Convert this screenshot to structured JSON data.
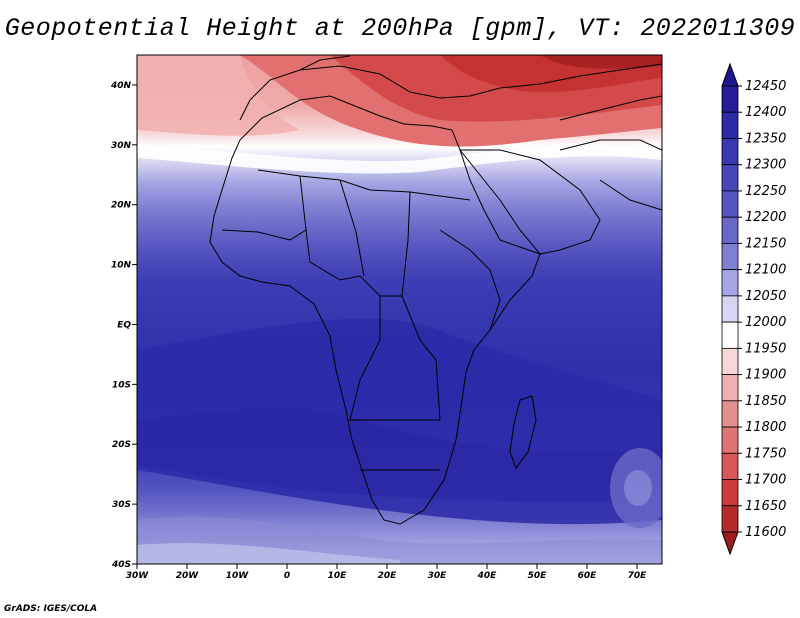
{
  "title": "Geopotential Height at 200hPa [gpm], VT: 2022011309",
  "footer": "GrADS: IGES/COLA",
  "map": {
    "lat_labels": [
      "40N",
      "30N",
      "20N",
      "10N",
      "EQ",
      "10S",
      "20S",
      "30S",
      "40S"
    ],
    "lon_labels": [
      "30W",
      "20W",
      "10W",
      "0",
      "10E",
      "20E",
      "30E",
      "40E",
      "50E",
      "60E",
      "70E"
    ]
  },
  "colorbar": {
    "levels": [
      "12450",
      "12400",
      "12350",
      "12300",
      "12250",
      "12200",
      "12150",
      "12100",
      "12050",
      "12000",
      "11950",
      "11900",
      "11850",
      "11800",
      "11750",
      "11700",
      "11650",
      "11600"
    ],
    "colors": [
      "#1e188f",
      "#261c9a",
      "#2d2aa8",
      "#3838b2",
      "#4646b8",
      "#5656c0",
      "#6868c8",
      "#8080d2",
      "#a6a6e4",
      "#d6d6f2",
      "#ffffff",
      "#f6d8d8",
      "#eeb0b0",
      "#e49090",
      "#de7474",
      "#d85858",
      "#cc3c3c",
      "#b42a2a",
      "#9c1c1c"
    ]
  }
}
